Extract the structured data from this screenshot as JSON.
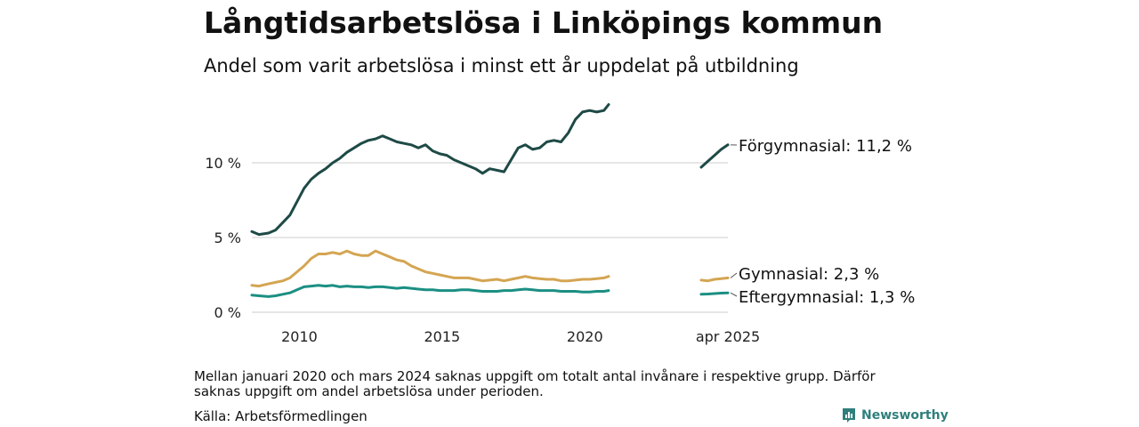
{
  "header": {
    "title": "Långtidsarbetslösa i Linköpings kommun",
    "subtitle": "Andel som varit arbetslösa i minst ett år uppdelat på utbildning"
  },
  "footer": {
    "note": "Mellan januari 2020 och mars 2024 saknas uppgift om totalt antal invånare i respektive grupp. Därför saknas uppgift om andel arbetslösa under perioden.",
    "source": "Källa: Arbetsförmedlingen",
    "brand": "Newsworthy"
  },
  "colors": {
    "forgymnasial": "#1e4a46",
    "gymnasial": "#d4a552",
    "eftergymnasial": "#1b8f83",
    "grid": "#dddddd",
    "brand": "#2f7f7c"
  },
  "chart_data": {
    "type": "line",
    "title": "Långtidsarbetslösa i Linköpings kommun",
    "subtitle": "Andel som varit arbetslösa i minst ett år uppdelat på utbildning",
    "y_ticks": [
      {
        "value": 0,
        "label": "0 %"
      },
      {
        "value": 5,
        "label": "5 %"
      },
      {
        "value": 10,
        "label": "10 %"
      }
    ],
    "ylim": [
      0,
      14
    ],
    "x_ticks": [
      {
        "label": "2010",
        "period": "2010",
        "date": "2010-01"
      },
      {
        "label": "2015",
        "period": "2015",
        "date": "2015-01"
      },
      {
        "label": "2020",
        "period": "2020",
        "date": "2020-01"
      },
      {
        "label": "apr 2025",
        "period": "2024-2025",
        "date": "2025-04"
      }
    ],
    "grid": true,
    "legend": "end-labels-right",
    "series": [
      {
        "name": "Förgymnasial",
        "label_value": "11,2 %",
        "color": "#1e4a46",
        "period1": [
          [
            "2008-05",
            5.4
          ],
          [
            "2008-08",
            5.2
          ],
          [
            "2008-12",
            5.3
          ],
          [
            "2009-03",
            5.5
          ],
          [
            "2009-06",
            6.0
          ],
          [
            "2009-09",
            6.5
          ],
          [
            "2009-12",
            7.4
          ],
          [
            "2010-03",
            8.3
          ],
          [
            "2010-06",
            8.9
          ],
          [
            "2010-09",
            9.3
          ],
          [
            "2010-12",
            9.6
          ],
          [
            "2011-03",
            10.0
          ],
          [
            "2011-06",
            10.3
          ],
          [
            "2011-09",
            10.7
          ],
          [
            "2011-12",
            11.0
          ],
          [
            "2012-03",
            11.3
          ],
          [
            "2012-06",
            11.5
          ],
          [
            "2012-09",
            11.6
          ],
          [
            "2012-12",
            11.8
          ],
          [
            "2013-03",
            11.6
          ],
          [
            "2013-06",
            11.4
          ],
          [
            "2013-09",
            11.3
          ],
          [
            "2013-12",
            11.2
          ],
          [
            "2014-03",
            11.0
          ],
          [
            "2014-06",
            11.2
          ],
          [
            "2014-09",
            10.8
          ],
          [
            "2014-12",
            10.6
          ],
          [
            "2015-03",
            10.5
          ],
          [
            "2015-06",
            10.2
          ],
          [
            "2015-09",
            10.0
          ],
          [
            "2015-12",
            9.8
          ],
          [
            "2016-03",
            9.6
          ],
          [
            "2016-06",
            9.3
          ],
          [
            "2016-09",
            9.6
          ],
          [
            "2016-12",
            9.5
          ],
          [
            "2017-03",
            9.4
          ],
          [
            "2017-06",
            10.2
          ],
          [
            "2017-09",
            11.0
          ],
          [
            "2017-12",
            11.2
          ],
          [
            "2018-03",
            10.9
          ],
          [
            "2018-06",
            11.0
          ],
          [
            "2018-09",
            11.4
          ],
          [
            "2018-12",
            11.5
          ],
          [
            "2019-03",
            11.4
          ],
          [
            "2019-06",
            12.0
          ],
          [
            "2019-09",
            12.9
          ],
          [
            "2019-12",
            13.4
          ],
          [
            "2020-03",
            13.5
          ],
          [
            "2020-06",
            13.4
          ],
          [
            "2020-09",
            13.5
          ],
          [
            "2020-11",
            13.9
          ]
        ],
        "period2": [
          [
            "2024-04",
            9.7
          ],
          [
            "2024-07",
            10.1
          ],
          [
            "2024-10",
            10.5
          ],
          [
            "2025-01",
            10.9
          ],
          [
            "2025-04",
            11.2
          ]
        ]
      },
      {
        "name": "Gymnasial",
        "label_value": "2,3 %",
        "color": "#d4a552",
        "period1": [
          [
            "2008-05",
            1.8
          ],
          [
            "2008-08",
            1.75
          ],
          [
            "2008-12",
            1.9
          ],
          [
            "2009-03",
            2.0
          ],
          [
            "2009-06",
            2.1
          ],
          [
            "2009-09",
            2.3
          ],
          [
            "2009-12",
            2.7
          ],
          [
            "2010-03",
            3.1
          ],
          [
            "2010-06",
            3.6
          ],
          [
            "2010-09",
            3.9
          ],
          [
            "2010-12",
            3.9
          ],
          [
            "2011-03",
            4.0
          ],
          [
            "2011-06",
            3.9
          ],
          [
            "2011-09",
            4.1
          ],
          [
            "2011-12",
            3.9
          ],
          [
            "2012-03",
            3.8
          ],
          [
            "2012-06",
            3.8
          ],
          [
            "2012-09",
            4.1
          ],
          [
            "2012-12",
            3.9
          ],
          [
            "2013-03",
            3.7
          ],
          [
            "2013-06",
            3.5
          ],
          [
            "2013-09",
            3.4
          ],
          [
            "2013-12",
            3.1
          ],
          [
            "2014-03",
            2.9
          ],
          [
            "2014-06",
            2.7
          ],
          [
            "2014-09",
            2.6
          ],
          [
            "2014-12",
            2.5
          ],
          [
            "2015-03",
            2.4
          ],
          [
            "2015-06",
            2.3
          ],
          [
            "2015-09",
            2.3
          ],
          [
            "2015-12",
            2.3
          ],
          [
            "2016-03",
            2.2
          ],
          [
            "2016-06",
            2.1
          ],
          [
            "2016-09",
            2.15
          ],
          [
            "2016-12",
            2.2
          ],
          [
            "2017-03",
            2.1
          ],
          [
            "2017-06",
            2.2
          ],
          [
            "2017-09",
            2.3
          ],
          [
            "2017-12",
            2.4
          ],
          [
            "2018-03",
            2.3
          ],
          [
            "2018-06",
            2.25
          ],
          [
            "2018-09",
            2.2
          ],
          [
            "2018-12",
            2.2
          ],
          [
            "2019-03",
            2.1
          ],
          [
            "2019-06",
            2.1
          ],
          [
            "2019-09",
            2.15
          ],
          [
            "2019-12",
            2.2
          ],
          [
            "2020-03",
            2.2
          ],
          [
            "2020-06",
            2.25
          ],
          [
            "2020-09",
            2.3
          ],
          [
            "2020-11",
            2.4
          ]
        ],
        "period2": [
          [
            "2024-04",
            2.15
          ],
          [
            "2024-07",
            2.1
          ],
          [
            "2024-10",
            2.2
          ],
          [
            "2025-01",
            2.25
          ],
          [
            "2025-04",
            2.3
          ]
        ]
      },
      {
        "name": "Eftergymnasial",
        "label_value": "1,3 %",
        "color": "#1b8f83",
        "period1": [
          [
            "2008-05",
            1.15
          ],
          [
            "2008-08",
            1.1
          ],
          [
            "2008-12",
            1.05
          ],
          [
            "2009-03",
            1.1
          ],
          [
            "2009-06",
            1.2
          ],
          [
            "2009-09",
            1.3
          ],
          [
            "2009-12",
            1.5
          ],
          [
            "2010-03",
            1.7
          ],
          [
            "2010-06",
            1.75
          ],
          [
            "2010-09",
            1.8
          ],
          [
            "2010-12",
            1.75
          ],
          [
            "2011-03",
            1.8
          ],
          [
            "2011-06",
            1.7
          ],
          [
            "2011-09",
            1.75
          ],
          [
            "2011-12",
            1.7
          ],
          [
            "2012-03",
            1.7
          ],
          [
            "2012-06",
            1.65
          ],
          [
            "2012-09",
            1.7
          ],
          [
            "2012-12",
            1.7
          ],
          [
            "2013-03",
            1.65
          ],
          [
            "2013-06",
            1.6
          ],
          [
            "2013-09",
            1.65
          ],
          [
            "2013-12",
            1.6
          ],
          [
            "2014-03",
            1.55
          ],
          [
            "2014-06",
            1.5
          ],
          [
            "2014-09",
            1.5
          ],
          [
            "2014-12",
            1.45
          ],
          [
            "2015-03",
            1.45
          ],
          [
            "2015-06",
            1.45
          ],
          [
            "2015-09",
            1.5
          ],
          [
            "2015-12",
            1.5
          ],
          [
            "2016-03",
            1.45
          ],
          [
            "2016-06",
            1.4
          ],
          [
            "2016-09",
            1.4
          ],
          [
            "2016-12",
            1.4
          ],
          [
            "2017-03",
            1.45
          ],
          [
            "2017-06",
            1.45
          ],
          [
            "2017-09",
            1.5
          ],
          [
            "2017-12",
            1.55
          ],
          [
            "2018-03",
            1.5
          ],
          [
            "2018-06",
            1.45
          ],
          [
            "2018-09",
            1.45
          ],
          [
            "2018-12",
            1.45
          ],
          [
            "2019-03",
            1.4
          ],
          [
            "2019-06",
            1.4
          ],
          [
            "2019-09",
            1.4
          ],
          [
            "2019-12",
            1.35
          ],
          [
            "2020-03",
            1.35
          ],
          [
            "2020-06",
            1.4
          ],
          [
            "2020-09",
            1.4
          ],
          [
            "2020-11",
            1.45
          ]
        ],
        "period2": [
          [
            "2024-04",
            1.2
          ],
          [
            "2024-07",
            1.22
          ],
          [
            "2024-10",
            1.25
          ],
          [
            "2025-01",
            1.28
          ],
          [
            "2025-04",
            1.3
          ]
        ]
      }
    ]
  }
}
